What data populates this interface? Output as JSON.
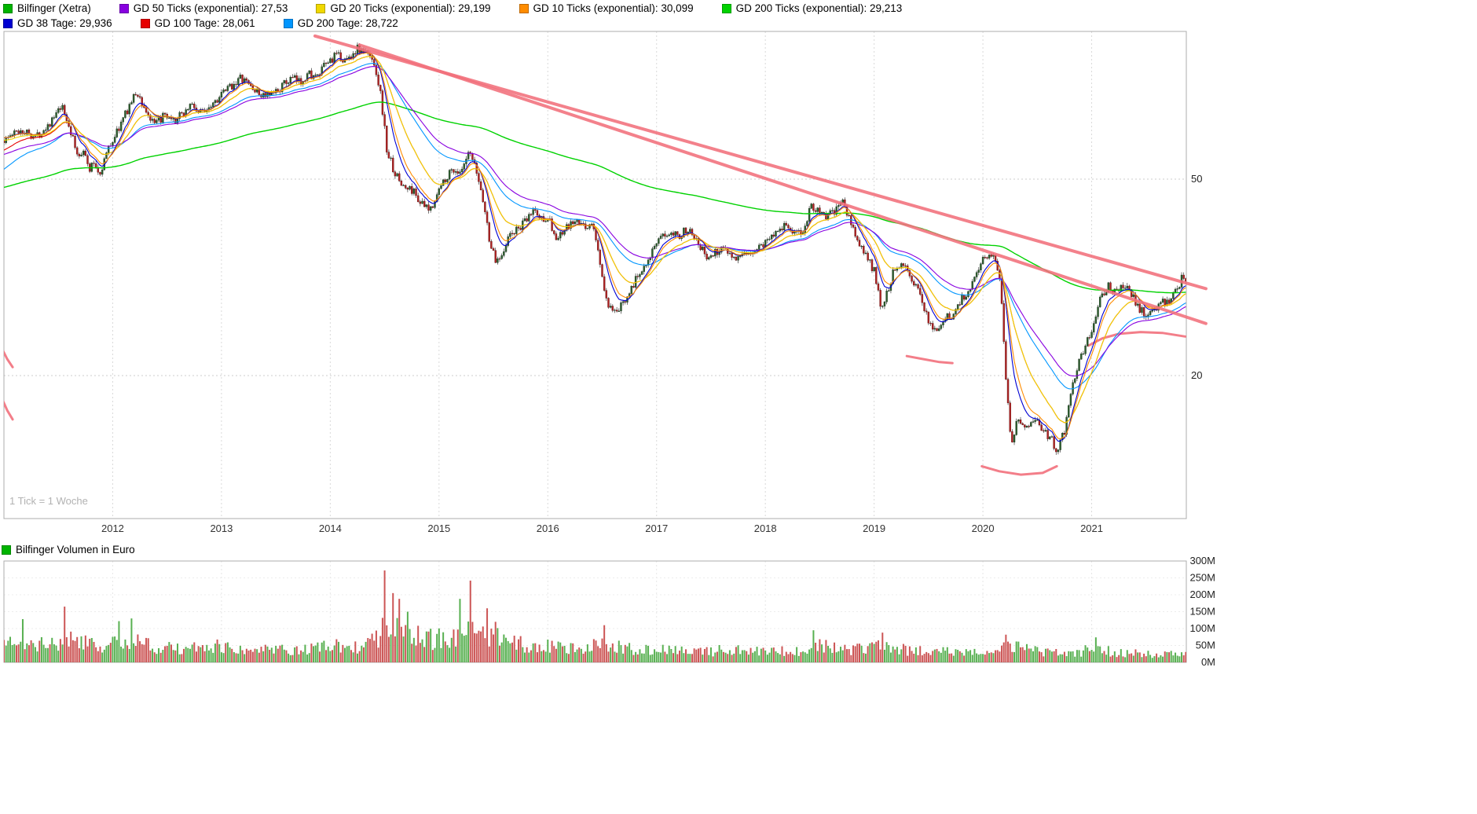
{
  "header": {
    "legend_rows": [
      [
        {
          "name": "instrument-bilfinger",
          "color": "#00b400",
          "label": "Bilfinger (Xetra)"
        },
        {
          "name": "gd-50-ticks",
          "color": "#8800e0",
          "label": "GD 50 Ticks (exponential): 27,53"
        },
        {
          "name": "gd-20-ticks",
          "color": "#f0d800",
          "label": "GD 20 Ticks (exponential): 29,199"
        },
        {
          "name": "gd-10-ticks",
          "color": "#ff8c00",
          "label": "GD 10 Ticks (exponential): 30,099"
        },
        {
          "name": "gd-200-ticks",
          "color": "#00d200",
          "label": "GD 200 Ticks (exponential): 29,213"
        }
      ],
      [
        {
          "name": "gd-38-tage",
          "color": "#0000d2",
          "label": "GD 38 Tage: 29,936"
        },
        {
          "name": "gd-100-tage",
          "color": "#e60000",
          "label": "GD 100 Tage: 28,061"
        },
        {
          "name": "gd-200-tage",
          "color": "#0096ff",
          "label": "GD 200 Tage: 28,722"
        }
      ]
    ]
  },
  "main_chart": {
    "tick_note": "1 Tick = 1 Woche"
  },
  "volume_chart": {
    "legend": {
      "name": "volume-bilfinger",
      "color": "#00b400",
      "label": "Bilfinger Volumen in Euro"
    }
  },
  "chart_data": [
    {
      "type": "candlestick",
      "title": "Bilfinger (Xetra), Wochenkerzen, EUR (log. Skala)",
      "x_range": [
        2011.0,
        2021.87
      ],
      "x_tick_values": [
        2012,
        2013,
        2014,
        2015,
        2016,
        2017,
        2018,
        2019,
        2020,
        2021
      ],
      "x_tick_labels": [
        "2012",
        "2013",
        "2014",
        "2015",
        "2016",
        "2017",
        "2018",
        "2019",
        "2020",
        "2021"
      ],
      "y_scale": "log",
      "y_tick_values": [
        50,
        20
      ],
      "y_tick_labels": [
        "50",
        "20"
      ],
      "ylim": [
        10.3,
        99.6
      ],
      "candles_per_year": 52,
      "seed": 1337,
      "up_color": "#2d5e2d",
      "down_color": "#b22222",
      "price_keypoints": [
        [
          2011.0,
          60
        ],
        [
          2011.15,
          63
        ],
        [
          2011.3,
          61
        ],
        [
          2011.45,
          66
        ],
        [
          2011.53,
          70
        ],
        [
          2011.6,
          64
        ],
        [
          2011.68,
          55
        ],
        [
          2011.73,
          58
        ],
        [
          2011.78,
          52
        ],
        [
          2011.83,
          54
        ],
        [
          2011.88,
          51
        ],
        [
          2011.95,
          57
        ],
        [
          2012.0,
          60
        ],
        [
          2012.08,
          65
        ],
        [
          2012.16,
          71
        ],
        [
          2012.22,
          75
        ],
        [
          2012.3,
          69
        ],
        [
          2012.38,
          64
        ],
        [
          2012.46,
          67
        ],
        [
          2012.55,
          65
        ],
        [
          2012.65,
          68
        ],
        [
          2012.72,
          71
        ],
        [
          2012.8,
          68
        ],
        [
          2012.9,
          71
        ],
        [
          2013.0,
          74
        ],
        [
          2013.08,
          77
        ],
        [
          2013.17,
          80
        ],
        [
          2013.25,
          78
        ],
        [
          2013.33,
          74.5
        ],
        [
          2013.45,
          73.5
        ],
        [
          2013.55,
          77
        ],
        [
          2013.65,
          80
        ],
        [
          2013.72,
          78.5
        ],
        [
          2013.8,
          82
        ],
        [
          2013.88,
          80
        ],
        [
          2013.95,
          85
        ],
        [
          2014.05,
          89
        ],
        [
          2014.15,
          87
        ],
        [
          2014.25,
          92
        ],
        [
          2014.33,
          90
        ],
        [
          2014.4,
          87
        ],
        [
          2014.46,
          75
        ],
        [
          2014.52,
          57
        ],
        [
          2014.6,
          51
        ],
        [
          2014.68,
          48
        ],
        [
          2014.76,
          47.5
        ],
        [
          2014.84,
          44.5
        ],
        [
          2014.91,
          43
        ],
        [
          2014.97,
          46
        ],
        [
          2015.05,
          50
        ],
        [
          2015.13,
          52.5
        ],
        [
          2015.2,
          51
        ],
        [
          2015.28,
          56.5
        ],
        [
          2015.34,
          52
        ],
        [
          2015.4,
          46
        ],
        [
          2015.46,
          38
        ],
        [
          2015.52,
          34
        ],
        [
          2015.58,
          35.5
        ],
        [
          2015.65,
          38.5
        ],
        [
          2015.72,
          39.5
        ],
        [
          2015.8,
          41
        ],
        [
          2015.87,
          43.5
        ],
        [
          2015.93,
          41.5
        ],
        [
          2016.0,
          42
        ],
        [
          2016.08,
          37.5
        ],
        [
          2016.16,
          39.5
        ],
        [
          2016.25,
          41
        ],
        [
          2016.33,
          40
        ],
        [
          2016.41,
          40.5
        ],
        [
          2016.47,
          35
        ],
        [
          2016.53,
          28.5
        ],
        [
          2016.6,
          26.5
        ],
        [
          2016.67,
          27.5
        ],
        [
          2016.74,
          29.5
        ],
        [
          2016.82,
          31.5
        ],
        [
          2016.9,
          34
        ],
        [
          2016.97,
          36
        ],
        [
          2017.05,
          38
        ],
        [
          2017.13,
          39.5
        ],
        [
          2017.22,
          38.5
        ],
        [
          2017.3,
          40
        ],
        [
          2017.38,
          37.5
        ],
        [
          2017.46,
          34.5
        ],
        [
          2017.54,
          35.5
        ],
        [
          2017.62,
          36.5
        ],
        [
          2017.7,
          35
        ],
        [
          2017.78,
          34.5
        ],
        [
          2017.86,
          35.5
        ],
        [
          2017.94,
          36.5
        ],
        [
          2018.02,
          37.5
        ],
        [
          2018.1,
          39.5
        ],
        [
          2018.18,
          40.5
        ],
        [
          2018.26,
          39
        ],
        [
          2018.34,
          38.5
        ],
        [
          2018.42,
          44.5
        ],
        [
          2018.48,
          43
        ],
        [
          2018.56,
          42
        ],
        [
          2018.64,
          43
        ],
        [
          2018.71,
          45
        ],
        [
          2018.78,
          41
        ],
        [
          2018.85,
          37.5
        ],
        [
          2018.92,
          35
        ],
        [
          2019.0,
          32.5
        ],
        [
          2019.06,
          27.5
        ],
        [
          2019.12,
          29.5
        ],
        [
          2019.2,
          33.5
        ],
        [
          2019.27,
          34
        ],
        [
          2019.34,
          31.5
        ],
        [
          2019.42,
          29
        ],
        [
          2019.5,
          26
        ],
        [
          2019.57,
          24.5
        ],
        [
          2019.64,
          26
        ],
        [
          2019.72,
          26.5
        ],
        [
          2019.8,
          28.5
        ],
        [
          2019.88,
          30
        ],
        [
          2019.95,
          33
        ],
        [
          2020.03,
          35
        ],
        [
          2020.1,
          35.5
        ],
        [
          2020.16,
          31
        ],
        [
          2020.21,
          20
        ],
        [
          2020.26,
          14.5
        ],
        [
          2020.32,
          16.5
        ],
        [
          2020.4,
          15.5
        ],
        [
          2020.48,
          16.5
        ],
        [
          2020.55,
          15.5
        ],
        [
          2020.62,
          15
        ],
        [
          2020.69,
          14
        ],
        [
          2020.75,
          15.5
        ],
        [
          2020.81,
          18.5
        ],
        [
          2020.87,
          21
        ],
        [
          2020.94,
          23
        ],
        [
          2021.01,
          25
        ],
        [
          2021.08,
          28.5
        ],
        [
          2021.15,
          30.5
        ],
        [
          2021.22,
          29.5
        ],
        [
          2021.29,
          30.5
        ],
        [
          2021.36,
          29.5
        ],
        [
          2021.43,
          27.5
        ],
        [
          2021.5,
          26.5
        ],
        [
          2021.57,
          27
        ],
        [
          2021.64,
          28
        ],
        [
          2021.71,
          28.5
        ],
        [
          2021.78,
          29.5
        ],
        [
          2021.84,
          32
        ],
        [
          2021.87,
          30.5
        ]
      ],
      "moving_averages": [
        {
          "name": "gd-200-ticks",
          "label": "GD 200 Ticks (exponential)",
          "display_value": "29,213",
          "color": "#00d200",
          "period": 200,
          "init": 48,
          "width": 1.4
        },
        {
          "name": "gd-200-tage",
          "label": "GD 200 Tage",
          "display_value": "28,722",
          "color": "#0096ff",
          "period": 40,
          "init": 52,
          "width": 1.1
        },
        {
          "name": "gd-100-tage",
          "label": "GD 100 Tage",
          "display_value": "28,061",
          "color": "#e60000",
          "period": 20,
          "init": 57,
          "width": 1.1
        },
        {
          "name": "gd-50-ticks",
          "label": "GD 50 Ticks (exponential)",
          "display_value": "27,53",
          "color": "#8800e0",
          "period": 50,
          "init": 56,
          "width": 1.1
        },
        {
          "name": "gd-20-ticks",
          "label": "GD 20 Ticks (exponential)",
          "display_value": "29,199",
          "color": "#f0d800",
          "period": 20,
          "init": 60,
          "width": 1.1
        },
        {
          "name": "gd-38-tage",
          "label": "GD 38 Tage",
          "display_value": "29,936",
          "color": "#0000d2",
          "period": 8,
          "init": 61,
          "width": 1.1
        },
        {
          "name": "gd-10-ticks",
          "label": "GD 10 Ticks (exponential)",
          "display_value": "30,099",
          "color": "#ff8c00",
          "period": 10,
          "init": 61,
          "width": 1.1
        }
      ],
      "trend_lines": [
        {
          "from": [
            2013.86,
            97.5
          ],
          "to": [
            2022.05,
            30.0
          ],
          "color": "#f2707c",
          "width": 4
        },
        {
          "from": [
            2014.27,
            93.5
          ],
          "to": [
            2022.05,
            25.5
          ],
          "color": "#f2707c",
          "width": 4
        }
      ],
      "support_curves": [
        [
          [
            2010.99,
            22.5
          ],
          [
            2011.03,
            21.6
          ],
          [
            2011.08,
            20.8
          ]
        ],
        [
          [
            2010.99,
            17.8
          ],
          [
            2011.03,
            17.0
          ],
          [
            2011.08,
            16.3
          ]
        ],
        [
          [
            2019.3,
            21.9
          ],
          [
            2019.45,
            21.6
          ],
          [
            2019.6,
            21.3
          ],
          [
            2019.72,
            21.2
          ]
        ],
        [
          [
            2019.99,
            13.1
          ],
          [
            2020.15,
            12.8
          ],
          [
            2020.35,
            12.6
          ],
          [
            2020.55,
            12.7
          ],
          [
            2020.68,
            13.1
          ]
        ],
        [
          [
            2020.97,
            23.0
          ],
          [
            2021.1,
            23.8
          ],
          [
            2021.25,
            24.3
          ],
          [
            2021.45,
            24.5
          ],
          [
            2021.65,
            24.4
          ],
          [
            2021.86,
            24.0
          ]
        ]
      ]
    },
    {
      "type": "bar",
      "title": "Bilfinger Volumen in Euro",
      "unit": "M",
      "ylim": [
        0,
        300
      ],
      "y_tick_values": [
        300,
        250,
        200,
        150,
        100,
        50,
        0
      ],
      "y_tick_labels": [
        "300M",
        "250M",
        "200M",
        "150M",
        "100M",
        "50M",
        "0M"
      ],
      "up_color": "#58b051",
      "down_color": "#cc5555",
      "volume_keypoints": [
        [
          2011.0,
          55
        ],
        [
          2011.3,
          50
        ],
        [
          2011.6,
          65
        ],
        [
          2011.9,
          55
        ],
        [
          2012.1,
          70
        ],
        [
          2012.4,
          50
        ],
        [
          2012.7,
          45
        ],
        [
          2013.0,
          48
        ],
        [
          2013.3,
          42
        ],
        [
          2013.6,
          38
        ],
        [
          2013.9,
          45
        ],
        [
          2014.1,
          48
        ],
        [
          2014.35,
          55
        ],
        [
          2014.55,
          120
        ],
        [
          2014.75,
          85
        ],
        [
          2015.0,
          70
        ],
        [
          2015.25,
          95
        ],
        [
          2015.5,
          75
        ],
        [
          2015.75,
          55
        ],
        [
          2016.0,
          48
        ],
        [
          2016.3,
          42
        ],
        [
          2016.55,
          60
        ],
        [
          2016.8,
          42
        ],
        [
          2017.1,
          36
        ],
        [
          2017.4,
          32
        ],
        [
          2017.7,
          38
        ],
        [
          2018.0,
          32
        ],
        [
          2018.3,
          36
        ],
        [
          2018.5,
          48
        ],
        [
          2018.8,
          40
        ],
        [
          2019.05,
          48
        ],
        [
          2019.3,
          38
        ],
        [
          2019.6,
          34
        ],
        [
          2019.9,
          28
        ],
        [
          2020.1,
          30
        ],
        [
          2020.25,
          55
        ],
        [
          2020.5,
          32
        ],
        [
          2020.75,
          26
        ],
        [
          2021.0,
          38
        ],
        [
          2021.3,
          30
        ],
        [
          2021.6,
          22
        ],
        [
          2021.87,
          28
        ]
      ],
      "volume_spikes": [
        {
          "t": 2011.18,
          "v": 128,
          "dir": "up"
        },
        {
          "t": 2011.56,
          "v": 165,
          "dir": "down"
        },
        {
          "t": 2012.06,
          "v": 122,
          "dir": "up"
        },
        {
          "t": 2012.17,
          "v": 130,
          "dir": "up"
        },
        {
          "t": 2014.5,
          "v": 272,
          "dir": "down"
        },
        {
          "t": 2014.57,
          "v": 205,
          "dir": "down"
        },
        {
          "t": 2014.64,
          "v": 188,
          "dir": "down"
        },
        {
          "t": 2014.71,
          "v": 150,
          "dir": "up"
        },
        {
          "t": 2015.2,
          "v": 188,
          "dir": "up"
        },
        {
          "t": 2015.29,
          "v": 242,
          "dir": "down"
        },
        {
          "t": 2015.44,
          "v": 160,
          "dir": "down"
        },
        {
          "t": 2015.52,
          "v": 120,
          "dir": "down"
        },
        {
          "t": 2016.52,
          "v": 110,
          "dir": "down"
        },
        {
          "t": 2018.44,
          "v": 95,
          "dir": "up"
        },
        {
          "t": 2019.07,
          "v": 88,
          "dir": "down"
        },
        {
          "t": 2020.22,
          "v": 82,
          "dir": "down"
        },
        {
          "t": 2021.03,
          "v": 74,
          "dir": "up"
        }
      ]
    }
  ]
}
